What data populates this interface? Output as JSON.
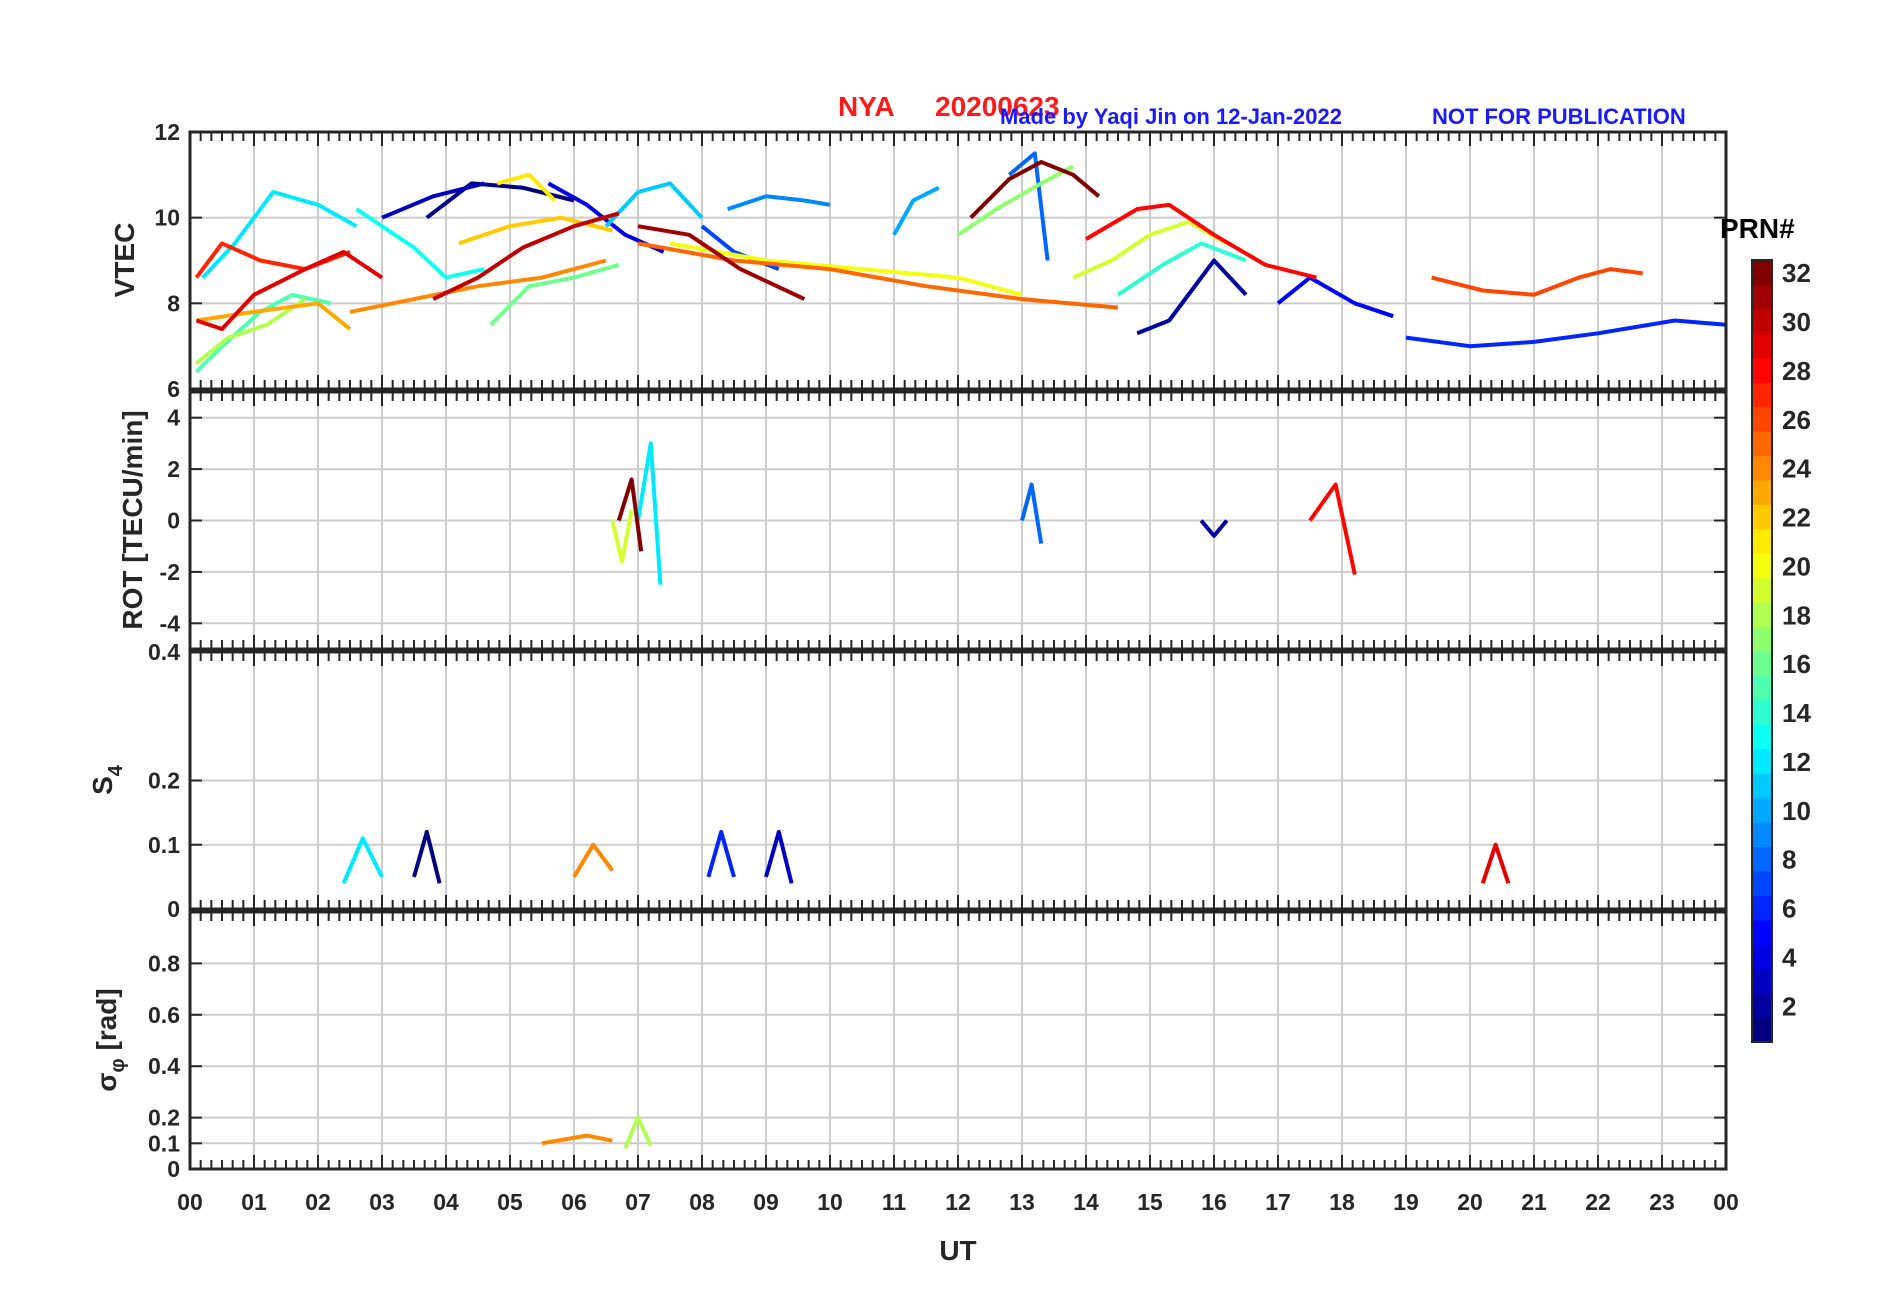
{
  "header": {
    "station": "NYA",
    "date": "20200623",
    "credit": "Made by Yaqi Jin on 12-Jan-2022",
    "notice": "NOT FOR PUBLICATION"
  },
  "colors": {
    "title": "#ff1a1a",
    "note": "#1a1aff",
    "grid": "#cccccc",
    "axis": "#262626"
  },
  "colorbar": {
    "label": "PRN#",
    "min": 1,
    "max": 32,
    "ticks": [
      "2",
      "4",
      "6",
      "8",
      "10",
      "12",
      "14",
      "16",
      "18",
      "20",
      "22",
      "24",
      "26",
      "28",
      "30",
      "32"
    ],
    "colormap": "jet"
  },
  "chart_data": {
    "type": "line",
    "xlabel": "UT",
    "x_ticks": [
      "00",
      "01",
      "02",
      "03",
      "04",
      "05",
      "06",
      "07",
      "08",
      "09",
      "10",
      "11",
      "12",
      "13",
      "14",
      "15",
      "16",
      "17",
      "18",
      "19",
      "20",
      "21",
      "22",
      "23",
      "00"
    ],
    "xlim_hours": [
      0,
      24
    ],
    "grid": true,
    "panels": [
      {
        "id": "vtec",
        "ylabel": "VTEC",
        "ylim": [
          6,
          12
        ],
        "y_ticks": [
          "6",
          "8",
          "10",
          "12"
        ],
        "series": [
          {
            "prn": 1,
            "x": [
              3.7,
              4.4,
              5.2,
              6.0
            ],
            "y": [
              10.0,
              10.8,
              10.7,
              10.4
            ]
          },
          {
            "prn": 2,
            "x": [
              14.8,
              15.3,
              16.0,
              16.5
            ],
            "y": [
              7.3,
              7.6,
              9.0,
              8.2
            ]
          },
          {
            "prn": 3,
            "x": [
              3.0,
              3.8,
              4.6
            ],
            "y": [
              10.0,
              10.5,
              10.8
            ]
          },
          {
            "prn": 4,
            "x": [
              5.6,
              6.2,
              6.8,
              7.4
            ],
            "y": [
              10.8,
              10.3,
              9.6,
              9.2
            ]
          },
          {
            "prn": 5,
            "x": [
              17.0,
              17.5,
              18.2,
              18.8
            ],
            "y": [
              8.0,
              8.6,
              8.0,
              7.7
            ]
          },
          {
            "prn": 6,
            "x": [
              19.0,
              20.0,
              21.0,
              22.0,
              23.2,
              24.0
            ],
            "y": [
              7.2,
              7.0,
              7.1,
              7.3,
              7.6,
              7.5
            ]
          },
          {
            "prn": 7,
            "x": [
              8.0,
              8.5,
              9.2
            ],
            "y": [
              9.8,
              9.2,
              8.8
            ]
          },
          {
            "prn": 8,
            "x": [
              12.8,
              13.2,
              13.4
            ],
            "y": [
              11.0,
              11.5,
              9.0
            ]
          },
          {
            "prn": 9,
            "x": [
              8.4,
              9.0,
              9.6,
              10.0
            ],
            "y": [
              10.2,
              10.5,
              10.4,
              10.3
            ]
          },
          {
            "prn": 10,
            "x": [
              11.0,
              11.3,
              11.7
            ],
            "y": [
              9.6,
              10.4,
              10.7
            ]
          },
          {
            "prn": 11,
            "x": [
              6.5,
              7.0,
              7.5,
              8.0
            ],
            "y": [
              9.8,
              10.6,
              10.8,
              10.0
            ]
          },
          {
            "prn": 12,
            "x": [
              0.2,
              0.7,
              1.3,
              2.0,
              2.6
            ],
            "y": [
              8.6,
              9.4,
              10.6,
              10.3,
              9.8
            ]
          },
          {
            "prn": 13,
            "x": [
              2.6,
              3.5,
              4.0,
              4.6
            ],
            "y": [
              10.2,
              9.3,
              8.6,
              8.8
            ]
          },
          {
            "prn": 14,
            "x": [
              14.5,
              15.2,
              15.8,
              16.5
            ],
            "y": [
              8.2,
              8.9,
              9.4,
              9.0
            ]
          },
          {
            "prn": 15,
            "x": [
              0.1,
              0.5,
              1.1,
              1.6,
              2.2
            ],
            "y": [
              6.4,
              7.0,
              7.8,
              8.2,
              8.0
            ]
          },
          {
            "prn": 16,
            "x": [
              4.7,
              5.3,
              6.0,
              6.7
            ],
            "y": [
              7.5,
              8.4,
              8.6,
              8.9
            ]
          },
          {
            "prn": 17,
            "x": [
              12.0,
              12.6,
              13.3,
              13.8
            ],
            "y": [
              9.6,
              10.2,
              10.8,
              11.2
            ]
          },
          {
            "prn": 18,
            "x": [
              0.1,
              0.6,
              1.2,
              1.8
            ],
            "y": [
              6.6,
              7.2,
              7.5,
              8.1
            ]
          },
          {
            "prn": 19,
            "x": [
              13.8,
              14.4,
              15.0,
              15.6,
              16.2
            ],
            "y": [
              8.6,
              9.0,
              9.6,
              9.9,
              9.4
            ]
          },
          {
            "prn": 20,
            "x": [
              7.5,
              9.0,
              10.5,
              12.0,
              13.0
            ],
            "y": [
              9.4,
              9.0,
              8.8,
              8.6,
              8.2
            ]
          },
          {
            "prn": 21,
            "x": [
              4.8,
              5.3,
              5.7
            ],
            "y": [
              10.8,
              11.0,
              10.4
            ]
          },
          {
            "prn": 22,
            "x": [
              4.2,
              5.0,
              5.8,
              6.6
            ],
            "y": [
              9.4,
              9.8,
              10.0,
              9.7
            ]
          },
          {
            "prn": 23,
            "x": [
              0.1,
              1.0,
              2.0,
              2.5
            ],
            "y": [
              7.6,
              7.8,
              8.0,
              7.4
            ]
          },
          {
            "prn": 24,
            "x": [
              2.5,
              3.5,
              4.5,
              5.5,
              6.5
            ],
            "y": [
              7.8,
              8.1,
              8.4,
              8.6,
              9.0
            ]
          },
          {
            "prn": 25,
            "x": [
              7.0,
              8.5,
              10.0,
              11.5,
              13.0,
              14.5
            ],
            "y": [
              9.4,
              9.0,
              8.8,
              8.4,
              8.1,
              7.9
            ]
          },
          {
            "prn": 26,
            "x": [
              19.4,
              20.2,
              21.0,
              21.7,
              22.2,
              22.7
            ],
            "y": [
              8.6,
              8.3,
              8.2,
              8.6,
              8.8,
              8.7
            ]
          },
          {
            "prn": 27,
            "x": [
              0.1,
              0.5,
              1.1,
              1.8,
              2.5
            ],
            "y": [
              8.6,
              9.4,
              9.0,
              8.8,
              9.2
            ]
          },
          {
            "prn": 28,
            "x": [
              14.0,
              14.8,
              15.3,
              16.0,
              16.8,
              17.6
            ],
            "y": [
              9.5,
              10.2,
              10.3,
              9.6,
              8.9,
              8.6
            ]
          },
          {
            "prn": 29,
            "x": [
              0.1,
              0.5,
              1.0,
              1.8,
              2.4,
              3.0
            ],
            "y": [
              7.6,
              7.4,
              8.2,
              8.8,
              9.2,
              8.6
            ]
          },
          {
            "prn": 30,
            "x": [
              3.8,
              4.5,
              5.2,
              6.0,
              6.7
            ],
            "y": [
              8.1,
              8.6,
              9.3,
              9.8,
              10.1
            ]
          },
          {
            "prn": 31,
            "x": [
              7.0,
              7.8,
              8.6,
              9.6
            ],
            "y": [
              9.8,
              9.6,
              8.8,
              8.1
            ]
          },
          {
            "prn": 32,
            "x": [
              12.2,
              12.8,
              13.3,
              13.8,
              14.2
            ],
            "y": [
              10.0,
              10.9,
              11.3,
              11.0,
              10.5
            ]
          }
        ]
      },
      {
        "id": "rot",
        "ylabel": "ROT [TECU/min]",
        "ylim": [
          -5,
          5
        ],
        "y_ticks": [
          "-4",
          "-2",
          "0",
          "2",
          "4"
        ],
        "series": [
          {
            "prn": 2,
            "x": [
              15.8,
              16.0,
              16.2
            ],
            "y": [
              0.0,
              -0.6,
              0.0
            ]
          },
          {
            "prn": 8,
            "x": [
              13.0,
              13.15,
              13.3
            ],
            "y": [
              0.0,
              1.4,
              -0.9
            ]
          },
          {
            "prn": 12,
            "x": [
              7.0,
              7.2,
              7.35
            ],
            "y": [
              0.0,
              3.0,
              -2.5
            ]
          },
          {
            "prn": 19,
            "x": [
              6.6,
              6.75,
              6.9
            ],
            "y": [
              0.0,
              -1.6,
              0.4
            ]
          },
          {
            "prn": 28,
            "x": [
              17.5,
              17.9,
              18.2
            ],
            "y": [
              0.0,
              1.4,
              -2.1
            ]
          },
          {
            "prn": 32,
            "x": [
              6.7,
              6.9,
              7.05
            ],
            "y": [
              0.0,
              1.6,
              -1.2
            ]
          }
        ]
      },
      {
        "id": "s4",
        "ylabel": "S4",
        "ylim": [
          0,
          0.4
        ],
        "y_ticks": [
          "0",
          "0.1",
          "0.2",
          "0.4"
        ],
        "series": [
          {
            "prn": 1,
            "x": [
              3.5,
              3.7,
              3.9
            ],
            "y": [
              0.05,
              0.12,
              0.04
            ]
          },
          {
            "prn": 3,
            "x": [
              9.0,
              9.2,
              9.4
            ],
            "y": [
              0.05,
              0.12,
              0.04
            ]
          },
          {
            "prn": 6,
            "x": [
              8.1,
              8.3,
              8.5
            ],
            "y": [
              0.05,
              0.12,
              0.05
            ]
          },
          {
            "prn": 12,
            "x": [
              2.4,
              2.7,
              3.0
            ],
            "y": [
              0.04,
              0.11,
              0.05
            ]
          },
          {
            "prn": 24,
            "x": [
              6.0,
              6.3,
              6.6
            ],
            "y": [
              0.05,
              0.1,
              0.06
            ]
          },
          {
            "prn": 29,
            "x": [
              20.2,
              20.4,
              20.6
            ],
            "y": [
              0.04,
              0.1,
              0.04
            ]
          }
        ]
      },
      {
        "id": "sigma",
        "ylabel": "σφ [rad]",
        "ylim": [
          0,
          1
        ],
        "y_ticks": [
          "0",
          "0.1",
          "0.2",
          "0.4",
          "0.6",
          "0.8"
        ],
        "series": [
          {
            "prn": 18,
            "x": [
              6.8,
              7.0,
              7.2
            ],
            "y": [
              0.08,
              0.2,
              0.09
            ]
          },
          {
            "prn": 24,
            "x": [
              5.5,
              6.2,
              6.6
            ],
            "y": [
              0.1,
              0.13,
              0.11
            ]
          }
        ]
      }
    ]
  }
}
